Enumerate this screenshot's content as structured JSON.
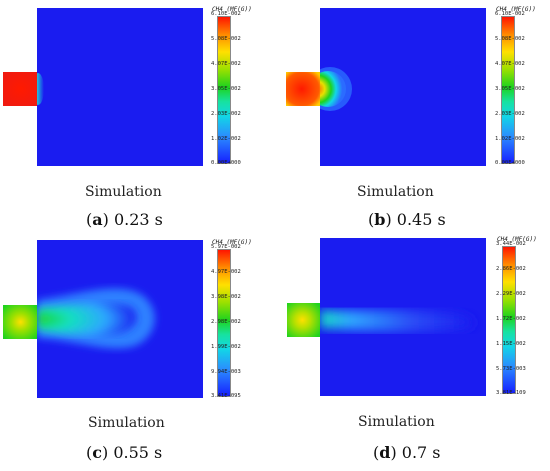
{
  "panels": [
    {
      "colorbar_title": "CH4  (MF(G))",
      "ticks": [
        "6.10E-002",
        "5.08E-002",
        "4.07E-002",
        "3.05E-002",
        "2.03E-002",
        "1.02E-002",
        "0.00E+000"
      ],
      "sim_label": "Simulation",
      "caption_letter": "a",
      "caption_time": "0.23 s"
    },
    {
      "colorbar_title": "CH4  (MF(G))",
      "ticks": [
        "6.10E-002",
        "5.08E-002",
        "4.07E-002",
        "3.05E-002",
        "2.03E-002",
        "1.02E-002",
        "0.00E+000"
      ],
      "sim_label": "Simulation",
      "caption_letter": "b",
      "caption_time": "0.45 s"
    },
    {
      "colorbar_title": "CH4  (MF(G))",
      "ticks": [
        "5.97E-002",
        "4.97E-002",
        "3.98E-002",
        "2.98E-002",
        "1.99E-002",
        "9.94E-003",
        "3.41E-095"
      ],
      "sim_label": "Simulation",
      "caption_letter": "c",
      "caption_time": "0.55 s"
    },
    {
      "colorbar_title": "CH4  (MF(G))",
      "ticks": [
        "3.44E-002",
        "2.86E-002",
        "2.29E-002",
        "1.72E-002",
        "1.15E-002",
        "5.73E-003",
        "3.81E-109"
      ],
      "sim_label": "Simulation",
      "caption_letter": "d",
      "caption_time": "0.7 s"
    }
  ],
  "colors": {
    "background_blue": "#1a1cf0",
    "high": "#ff1500",
    "low": "#1620ff"
  }
}
